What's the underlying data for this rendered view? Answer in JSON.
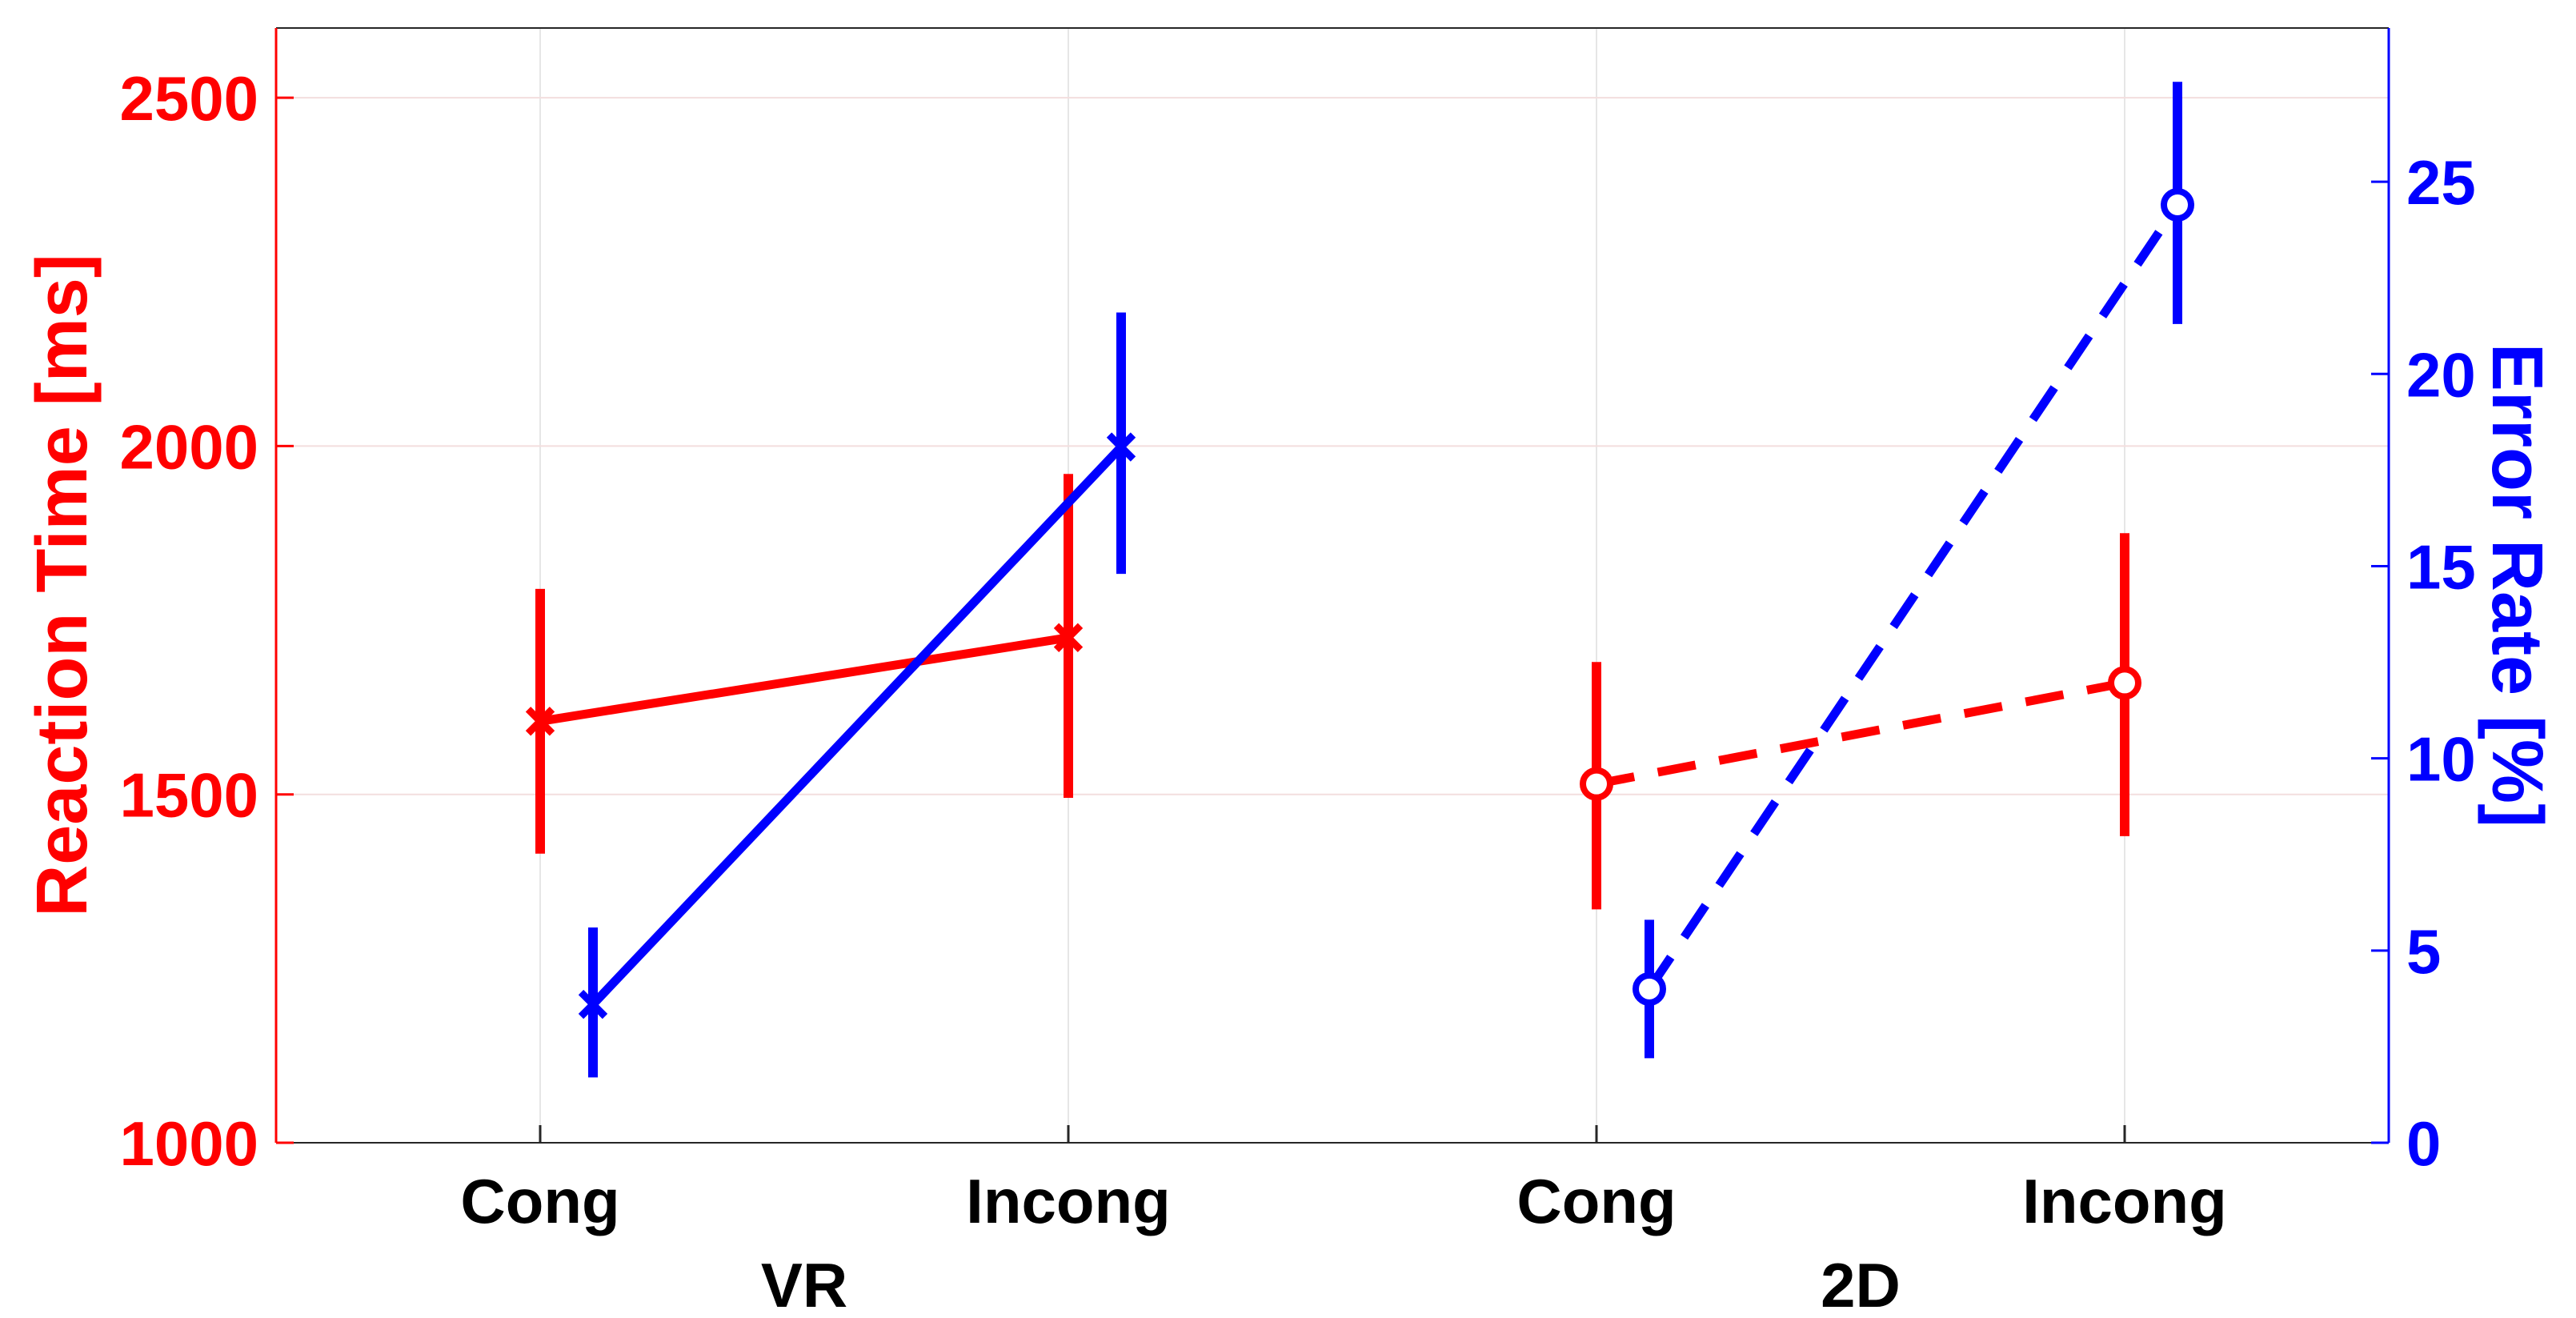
{
  "chart_data": {
    "type": "line",
    "title": "",
    "x_groups": [
      {
        "label": "VR",
        "categories": [
          "Cong",
          "Incong"
        ]
      },
      {
        "label": "2D",
        "categories": [
          "Cong",
          "Incong"
        ]
      }
    ],
    "y_left": {
      "label": "Reaction Time [ms]",
      "ylim": [
        1000,
        2600
      ],
      "ticks": [
        "1000",
        "1500",
        "2000",
        "2500"
      ],
      "color": "#ff0000"
    },
    "y_right": {
      "label": "Error Rate [%]",
      "ylim": [
        0,
        29
      ],
      "ticks": [
        "0",
        "5",
        "10",
        "15",
        "20",
        "25"
      ],
      "color": "#0000ff"
    },
    "grid": true,
    "series": [
      {
        "axis": "left",
        "group": "VR",
        "style": "solid",
        "marker": "x",
        "color": "#ff0000",
        "x": [
          1,
          2
        ],
        "y": [
          1605,
          1725
        ],
        "err_low": [
          1415,
          1495
        ],
        "err_high": [
          1795,
          1960
        ]
      },
      {
        "axis": "right",
        "group": "VR",
        "style": "solid",
        "marker": "x",
        "color": "#0000ff",
        "x": [
          1.1,
          2.1
        ],
        "y": [
          3.6,
          18.1
        ],
        "err_low": [
          1.7,
          14.8
        ],
        "err_high": [
          5.6,
          21.6
        ]
      },
      {
        "axis": "left",
        "group": "2D",
        "style": "dashed",
        "marker": "o",
        "color": "#ff0000",
        "x": [
          3,
          4
        ],
        "y": [
          1515,
          1660
        ],
        "err_low": [
          1335,
          1440
        ],
        "err_high": [
          1690,
          1875
        ]
      },
      {
        "axis": "right",
        "group": "2D",
        "style": "dashed",
        "marker": "o",
        "color": "#0000ff",
        "x": [
          3.1,
          4.1
        ],
        "y": [
          4.0,
          24.4
        ],
        "err_low": [
          2.2,
          21.3
        ],
        "err_high": [
          5.8,
          27.6
        ]
      }
    ]
  }
}
